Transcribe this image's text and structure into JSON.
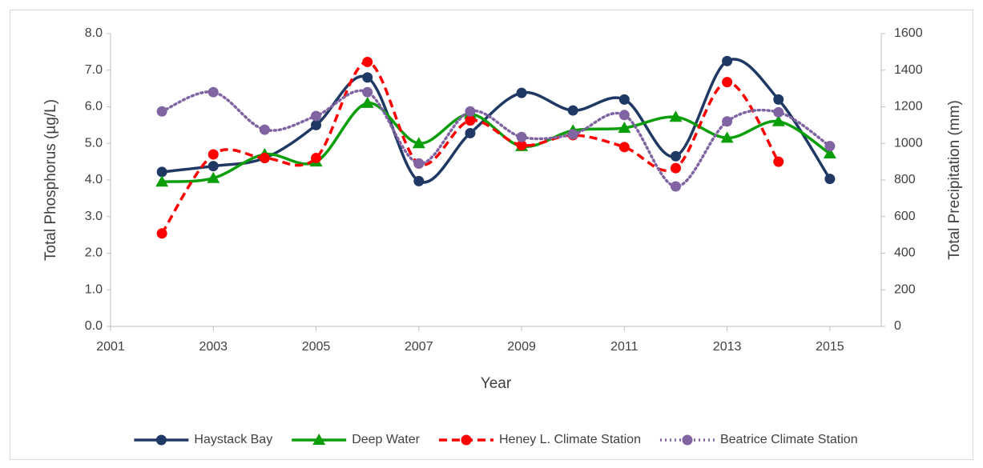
{
  "chart_data": {
    "type": "line",
    "x_label": "Year",
    "y_label": "Total Phosphorus (µg/L)",
    "y2_label": "Total Precipitation (mm)",
    "x": [
      2002,
      2003,
      2004,
      2005,
      2006,
      2007,
      2008,
      2009,
      2010,
      2011,
      2012,
      2013,
      2014,
      2015
    ],
    "series": [
      {
        "name": "Haystack Bay",
        "color": "#1f3864",
        "marker": "circle",
        "dash": "solid",
        "values": [
          4.22,
          4.38,
          4.6,
          5.5,
          6.8,
          3.97,
          5.28,
          6.38,
          5.9,
          6.2,
          4.65,
          7.25,
          6.2,
          4.03
        ]
      },
      {
        "name": "Deep Water",
        "color": "#0a9e0a",
        "marker": "triangle",
        "dash": "solid",
        "values": [
          3.95,
          4.05,
          4.7,
          4.5,
          6.1,
          5.0,
          5.8,
          4.92,
          5.35,
          5.42,
          5.72,
          5.15,
          5.6,
          4.72
        ]
      },
      {
        "name": "Heney L. Climate Station",
        "color": "#ff0000",
        "marker": "circle",
        "dash": "dashed",
        "axis": "y2",
        "values": [
          508,
          940,
          920,
          920,
          1445,
          890,
          1125,
          990,
          1045,
          980,
          865,
          1335,
          900,
          null
        ]
      },
      {
        "name": "Beatrice Climate Station",
        "color": "#8064a2",
        "marker": "circle",
        "dash": "dotted",
        "axis": "y2",
        "values": [
          1175,
          1280,
          1075,
          1150,
          1280,
          890,
          1175,
          1035,
          1050,
          1155,
          765,
          1120,
          1170,
          985
        ]
      }
    ],
    "xlim": [
      2001,
      2016
    ],
    "xticks": [
      2001,
      2003,
      2005,
      2007,
      2009,
      2011,
      2013,
      2015
    ],
    "ylim": [
      0,
      8
    ],
    "yticks": [
      {
        "value": 0,
        "label": "0.0"
      },
      {
        "value": 1,
        "label": "1.0"
      },
      {
        "value": 2,
        "label": "2.0"
      },
      {
        "value": 3,
        "label": "3.0"
      },
      {
        "value": 4,
        "label": "4.0"
      },
      {
        "value": 5,
        "label": "5.0"
      },
      {
        "value": 6,
        "label": "6.0"
      },
      {
        "value": 7,
        "label": "7.0"
      },
      {
        "value": 8,
        "label": "8.0"
      }
    ],
    "y2lim": [
      0,
      1600
    ],
    "y2ticks": [
      0,
      200,
      400,
      600,
      800,
      1000,
      1200,
      1400,
      1600
    ],
    "smooth": true,
    "legend": "bottom"
  }
}
